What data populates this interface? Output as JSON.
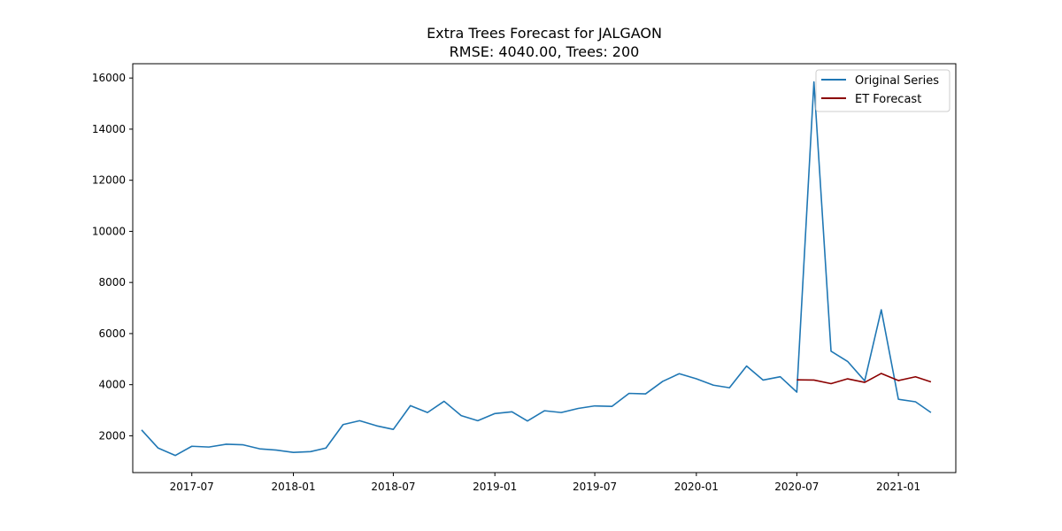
{
  "chart_data": {
    "type": "line",
    "title": "Extra Trees Forecast for JALGAON",
    "subtitle": "RMSE: 4040.00, Trees: 200",
    "xlabel": "",
    "ylabel": "",
    "ylim": [
      560,
      16560
    ],
    "xlim": [
      "2017-03-16",
      "2021-04-15"
    ],
    "x_ticks": [
      "2017-07",
      "2018-01",
      "2018-07",
      "2019-01",
      "2019-07",
      "2020-01",
      "2020-07",
      "2021-01"
    ],
    "y_ticks": [
      2000,
      4000,
      6000,
      8000,
      10000,
      12000,
      14000,
      16000
    ],
    "grid": false,
    "legend_position": "top-right",
    "series": [
      {
        "name": "Original Series",
        "color": "#1f77b4",
        "points": [
          [
            "2017-04-01",
            2230
          ],
          [
            "2017-05-01",
            1520
          ],
          [
            "2017-06-01",
            1230
          ],
          [
            "2017-07-01",
            1590
          ],
          [
            "2017-08-01",
            1560
          ],
          [
            "2017-09-01",
            1670
          ],
          [
            "2017-10-01",
            1650
          ],
          [
            "2017-11-01",
            1490
          ],
          [
            "2017-12-01",
            1440
          ],
          [
            "2018-01-01",
            1350
          ],
          [
            "2018-02-01",
            1380
          ],
          [
            "2018-03-01",
            1520
          ],
          [
            "2018-04-01",
            2440
          ],
          [
            "2018-05-01",
            2590
          ],
          [
            "2018-06-01",
            2390
          ],
          [
            "2018-07-01",
            2250
          ],
          [
            "2018-08-01",
            3180
          ],
          [
            "2018-09-01",
            2910
          ],
          [
            "2018-10-01",
            3350
          ],
          [
            "2018-11-01",
            2790
          ],
          [
            "2018-12-01",
            2590
          ],
          [
            "2019-01-01",
            2870
          ],
          [
            "2019-02-01",
            2940
          ],
          [
            "2019-03-01",
            2580
          ],
          [
            "2019-04-01",
            2980
          ],
          [
            "2019-05-01",
            2910
          ],
          [
            "2019-06-01",
            3070
          ],
          [
            "2019-07-01",
            3170
          ],
          [
            "2019-08-01",
            3150
          ],
          [
            "2019-09-01",
            3660
          ],
          [
            "2019-10-01",
            3640
          ],
          [
            "2019-11-01",
            4130
          ],
          [
            "2019-12-01",
            4430
          ],
          [
            "2020-01-01",
            4230
          ],
          [
            "2020-02-01",
            3980
          ],
          [
            "2020-03-01",
            3880
          ],
          [
            "2020-04-01",
            4730
          ],
          [
            "2020-05-01",
            4180
          ],
          [
            "2020-06-01",
            4310
          ],
          [
            "2020-07-01",
            3710
          ],
          [
            "2020-08-01",
            15850
          ],
          [
            "2020-09-01",
            5310
          ],
          [
            "2020-10-01",
            4910
          ],
          [
            "2020-11-01",
            4150
          ],
          [
            "2020-12-01",
            6930
          ],
          [
            "2021-01-01",
            3430
          ],
          [
            "2021-02-01",
            3330
          ],
          [
            "2021-03-01",
            2910
          ]
        ]
      },
      {
        "name": "ET Forecast",
        "color": "#8b0000",
        "points": [
          [
            "2020-07-01",
            4190
          ],
          [
            "2020-08-01",
            4180
          ],
          [
            "2020-09-01",
            4040
          ],
          [
            "2020-10-01",
            4230
          ],
          [
            "2020-11-01",
            4090
          ],
          [
            "2020-12-01",
            4440
          ],
          [
            "2021-01-01",
            4160
          ],
          [
            "2021-02-01",
            4310
          ],
          [
            "2021-03-01",
            4110
          ]
        ]
      }
    ]
  }
}
